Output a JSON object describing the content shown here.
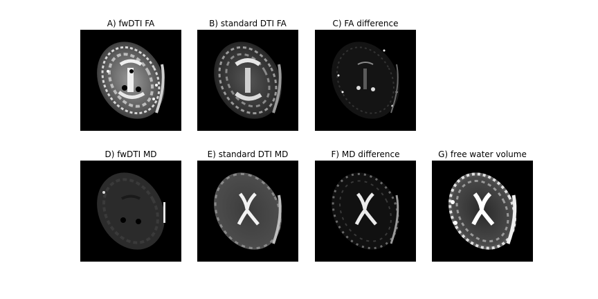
{
  "panels": [
    {
      "id": "a",
      "title": "A) fwDTI FA",
      "tone": "fa-bright"
    },
    {
      "id": "b",
      "title": "B) standard DTI FA",
      "tone": "fa-standard"
    },
    {
      "id": "c",
      "title": "C) FA difference",
      "tone": "fa-diff"
    },
    {
      "id": "d",
      "title": "D) fwDTI MD",
      "tone": "md-dark"
    },
    {
      "id": "e",
      "title": "E) standard DTI MD",
      "tone": "md-standard"
    },
    {
      "id": "f",
      "title": "F) MD difference",
      "tone": "md-diff"
    },
    {
      "id": "g",
      "title": "G) free water volume",
      "tone": "fw-volume"
    }
  ],
  "colors": {
    "background": "#ffffff",
    "image_background": "#000000",
    "text": "#000000"
  }
}
